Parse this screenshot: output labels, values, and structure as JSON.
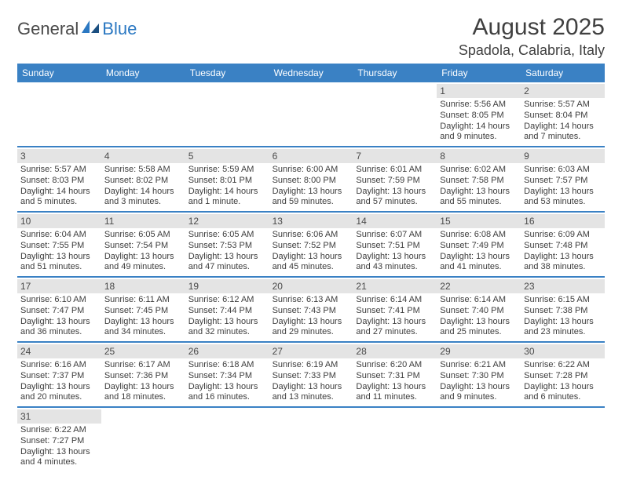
{
  "logo": {
    "text1": "General",
    "text2": "Blue"
  },
  "title": "August 2025",
  "location": "Spadola, Calabria, Italy",
  "colors": {
    "header_bg": "#3a81c4",
    "header_text": "#ffffff",
    "daynum_bg": "#e4e4e4",
    "row_border": "#3a81c4",
    "body_text": "#3d3d3d",
    "title_text": "#404040",
    "logo_blue": "#2b78c2"
  },
  "weekdays": [
    "Sunday",
    "Monday",
    "Tuesday",
    "Wednesday",
    "Thursday",
    "Friday",
    "Saturday"
  ],
  "weeks": [
    [
      null,
      null,
      null,
      null,
      null,
      {
        "n": "1",
        "sr": "Sunrise: 5:56 AM",
        "ss": "Sunset: 8:05 PM",
        "d1": "Daylight: 14 hours",
        "d2": "and 9 minutes."
      },
      {
        "n": "2",
        "sr": "Sunrise: 5:57 AM",
        "ss": "Sunset: 8:04 PM",
        "d1": "Daylight: 14 hours",
        "d2": "and 7 minutes."
      }
    ],
    [
      {
        "n": "3",
        "sr": "Sunrise: 5:57 AM",
        "ss": "Sunset: 8:03 PM",
        "d1": "Daylight: 14 hours",
        "d2": "and 5 minutes."
      },
      {
        "n": "4",
        "sr": "Sunrise: 5:58 AM",
        "ss": "Sunset: 8:02 PM",
        "d1": "Daylight: 14 hours",
        "d2": "and 3 minutes."
      },
      {
        "n": "5",
        "sr": "Sunrise: 5:59 AM",
        "ss": "Sunset: 8:01 PM",
        "d1": "Daylight: 14 hours",
        "d2": "and 1 minute."
      },
      {
        "n": "6",
        "sr": "Sunrise: 6:00 AM",
        "ss": "Sunset: 8:00 PM",
        "d1": "Daylight: 13 hours",
        "d2": "and 59 minutes."
      },
      {
        "n": "7",
        "sr": "Sunrise: 6:01 AM",
        "ss": "Sunset: 7:59 PM",
        "d1": "Daylight: 13 hours",
        "d2": "and 57 minutes."
      },
      {
        "n": "8",
        "sr": "Sunrise: 6:02 AM",
        "ss": "Sunset: 7:58 PM",
        "d1": "Daylight: 13 hours",
        "d2": "and 55 minutes."
      },
      {
        "n": "9",
        "sr": "Sunrise: 6:03 AM",
        "ss": "Sunset: 7:57 PM",
        "d1": "Daylight: 13 hours",
        "d2": "and 53 minutes."
      }
    ],
    [
      {
        "n": "10",
        "sr": "Sunrise: 6:04 AM",
        "ss": "Sunset: 7:55 PM",
        "d1": "Daylight: 13 hours",
        "d2": "and 51 minutes."
      },
      {
        "n": "11",
        "sr": "Sunrise: 6:05 AM",
        "ss": "Sunset: 7:54 PM",
        "d1": "Daylight: 13 hours",
        "d2": "and 49 minutes."
      },
      {
        "n": "12",
        "sr": "Sunrise: 6:05 AM",
        "ss": "Sunset: 7:53 PM",
        "d1": "Daylight: 13 hours",
        "d2": "and 47 minutes."
      },
      {
        "n": "13",
        "sr": "Sunrise: 6:06 AM",
        "ss": "Sunset: 7:52 PM",
        "d1": "Daylight: 13 hours",
        "d2": "and 45 minutes."
      },
      {
        "n": "14",
        "sr": "Sunrise: 6:07 AM",
        "ss": "Sunset: 7:51 PM",
        "d1": "Daylight: 13 hours",
        "d2": "and 43 minutes."
      },
      {
        "n": "15",
        "sr": "Sunrise: 6:08 AM",
        "ss": "Sunset: 7:49 PM",
        "d1": "Daylight: 13 hours",
        "d2": "and 41 minutes."
      },
      {
        "n": "16",
        "sr": "Sunrise: 6:09 AM",
        "ss": "Sunset: 7:48 PM",
        "d1": "Daylight: 13 hours",
        "d2": "and 38 minutes."
      }
    ],
    [
      {
        "n": "17",
        "sr": "Sunrise: 6:10 AM",
        "ss": "Sunset: 7:47 PM",
        "d1": "Daylight: 13 hours",
        "d2": "and 36 minutes."
      },
      {
        "n": "18",
        "sr": "Sunrise: 6:11 AM",
        "ss": "Sunset: 7:45 PM",
        "d1": "Daylight: 13 hours",
        "d2": "and 34 minutes."
      },
      {
        "n": "19",
        "sr": "Sunrise: 6:12 AM",
        "ss": "Sunset: 7:44 PM",
        "d1": "Daylight: 13 hours",
        "d2": "and 32 minutes."
      },
      {
        "n": "20",
        "sr": "Sunrise: 6:13 AM",
        "ss": "Sunset: 7:43 PM",
        "d1": "Daylight: 13 hours",
        "d2": "and 29 minutes."
      },
      {
        "n": "21",
        "sr": "Sunrise: 6:14 AM",
        "ss": "Sunset: 7:41 PM",
        "d1": "Daylight: 13 hours",
        "d2": "and 27 minutes."
      },
      {
        "n": "22",
        "sr": "Sunrise: 6:14 AM",
        "ss": "Sunset: 7:40 PM",
        "d1": "Daylight: 13 hours",
        "d2": "and 25 minutes."
      },
      {
        "n": "23",
        "sr": "Sunrise: 6:15 AM",
        "ss": "Sunset: 7:38 PM",
        "d1": "Daylight: 13 hours",
        "d2": "and 23 minutes."
      }
    ],
    [
      {
        "n": "24",
        "sr": "Sunrise: 6:16 AM",
        "ss": "Sunset: 7:37 PM",
        "d1": "Daylight: 13 hours",
        "d2": "and 20 minutes."
      },
      {
        "n": "25",
        "sr": "Sunrise: 6:17 AM",
        "ss": "Sunset: 7:36 PM",
        "d1": "Daylight: 13 hours",
        "d2": "and 18 minutes."
      },
      {
        "n": "26",
        "sr": "Sunrise: 6:18 AM",
        "ss": "Sunset: 7:34 PM",
        "d1": "Daylight: 13 hours",
        "d2": "and 16 minutes."
      },
      {
        "n": "27",
        "sr": "Sunrise: 6:19 AM",
        "ss": "Sunset: 7:33 PM",
        "d1": "Daylight: 13 hours",
        "d2": "and 13 minutes."
      },
      {
        "n": "28",
        "sr": "Sunrise: 6:20 AM",
        "ss": "Sunset: 7:31 PM",
        "d1": "Daylight: 13 hours",
        "d2": "and 11 minutes."
      },
      {
        "n": "29",
        "sr": "Sunrise: 6:21 AM",
        "ss": "Sunset: 7:30 PM",
        "d1": "Daylight: 13 hours",
        "d2": "and 9 minutes."
      },
      {
        "n": "30",
        "sr": "Sunrise: 6:22 AM",
        "ss": "Sunset: 7:28 PM",
        "d1": "Daylight: 13 hours",
        "d2": "and 6 minutes."
      }
    ],
    [
      {
        "n": "31",
        "sr": "Sunrise: 6:22 AM",
        "ss": "Sunset: 7:27 PM",
        "d1": "Daylight: 13 hours",
        "d2": "and 4 minutes."
      },
      null,
      null,
      null,
      null,
      null,
      null
    ]
  ]
}
